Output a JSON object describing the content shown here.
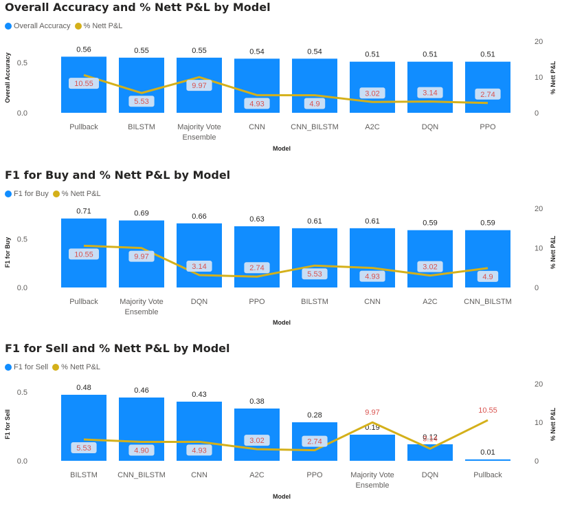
{
  "colors": {
    "bar": "#118dff",
    "line": "#d4b01a",
    "label_bg": "#c8def5",
    "label_text": "#d9534f"
  },
  "chart_data": [
    {
      "type": "bar",
      "title": "Overall Accuracy and % Nett P&L by Model",
      "legend": [
        "Overall Accuracy",
        "% Nett P&L"
      ],
      "xlabel": "Model",
      "ylabel": "Overall Accuracy",
      "y2label": "% Nett P&L",
      "ylim": [
        0,
        0.7
      ],
      "y2lim": [
        0,
        20
      ],
      "yticks": [
        "0.0",
        "0.5"
      ],
      "y2ticks": [
        "0",
        "10",
        "20"
      ],
      "categories": [
        [
          "Pullback"
        ],
        [
          "BILSTM"
        ],
        [
          "Majority Vote",
          "Ensemble"
        ],
        [
          "CNN"
        ],
        [
          "CNN_BILSTM"
        ],
        [
          "A2C"
        ],
        [
          "DQN"
        ],
        [
          "PPO"
        ]
      ],
      "series": [
        {
          "name": "Overall Accuracy",
          "values": [
            0.56,
            0.55,
            0.55,
            0.54,
            0.54,
            0.51,
            0.51,
            0.51
          ],
          "labels": [
            "0.56",
            "0.55",
            "0.55",
            "0.54",
            "0.54",
            "0.51",
            "0.51",
            "0.51"
          ]
        },
        {
          "name": "% Nett P&L",
          "values": [
            10.55,
            5.53,
            9.97,
            4.93,
            4.9,
            3.02,
            3.14,
            2.74
          ],
          "labels": [
            "10.55",
            "5.53",
            "9.97",
            "4.93",
            "4.9",
            "3.02",
            "3.14",
            "2.74"
          ]
        }
      ]
    },
    {
      "type": "bar",
      "title": "F1 for Buy and % Nett P&L by Model",
      "legend": [
        "F1 for Buy",
        "% Nett P&L"
      ],
      "xlabel": "Model",
      "ylabel": "F1 for Buy",
      "y2label": "% Nett P&L",
      "ylim": [
        0,
        0.8
      ],
      "y2lim": [
        0,
        20
      ],
      "yticks": [
        "0.0",
        "0.5"
      ],
      "y2ticks": [
        "0",
        "10",
        "20"
      ],
      "categories": [
        [
          "Pullback"
        ],
        [
          "Majority Vote",
          "Ensemble"
        ],
        [
          "DQN"
        ],
        [
          "PPO"
        ],
        [
          "BILSTM"
        ],
        [
          "CNN"
        ],
        [
          "A2C"
        ],
        [
          "CNN_BILSTM"
        ]
      ],
      "series": [
        {
          "name": "F1 for Buy",
          "values": [
            0.71,
            0.69,
            0.66,
            0.63,
            0.61,
            0.61,
            0.59,
            0.59
          ],
          "labels": [
            "0.71",
            "0.69",
            "0.66",
            "0.63",
            "0.61",
            "0.61",
            "0.59",
            "0.59"
          ]
        },
        {
          "name": "% Nett P&L",
          "values": [
            10.55,
            9.97,
            3.14,
            2.74,
            5.53,
            4.93,
            3.02,
            4.9
          ],
          "labels": [
            "10.55",
            "9.97",
            "3.14",
            "2.74",
            "5.53",
            "4.93",
            "3.02",
            "4.9"
          ]
        }
      ]
    },
    {
      "type": "bar",
      "title": "F1 for Sell and % Nett P&L by Model",
      "legend": [
        "F1 for Sell",
        "% Nett P&L"
      ],
      "xlabel": "Model",
      "ylabel": "F1 for Sell",
      "y2label": "% Nett P&L",
      "ylim": [
        0,
        0.55
      ],
      "y2lim": [
        0,
        20
      ],
      "yticks": [
        "0.0",
        "0.5"
      ],
      "y2ticks": [
        "0",
        "10",
        "20"
      ],
      "categories": [
        [
          "BILSTM"
        ],
        [
          "CNN_BILSTM"
        ],
        [
          "CNN"
        ],
        [
          "A2C"
        ],
        [
          "PPO"
        ],
        [
          "Majority Vote",
          "Ensemble"
        ],
        [
          "DQN"
        ],
        [
          "Pullback"
        ]
      ],
      "series": [
        {
          "name": "F1 for Sell",
          "values": [
            0.48,
            0.46,
            0.43,
            0.38,
            0.28,
            0.19,
            0.12,
            0.01
          ],
          "labels": [
            "0.48",
            "0.46",
            "0.43",
            "0.38",
            "0.28",
            "0.19",
            "0.12",
            "0.01"
          ]
        },
        {
          "name": "% Nett P&L",
          "values": [
            5.53,
            4.9,
            4.93,
            3.02,
            2.74,
            9.97,
            3.14,
            10.55
          ],
          "labels": [
            "5.53",
            "4.90",
            "4.93",
            "3.02",
            "2.74",
            "9.97",
            "3.14",
            "10.55"
          ]
        }
      ]
    }
  ]
}
